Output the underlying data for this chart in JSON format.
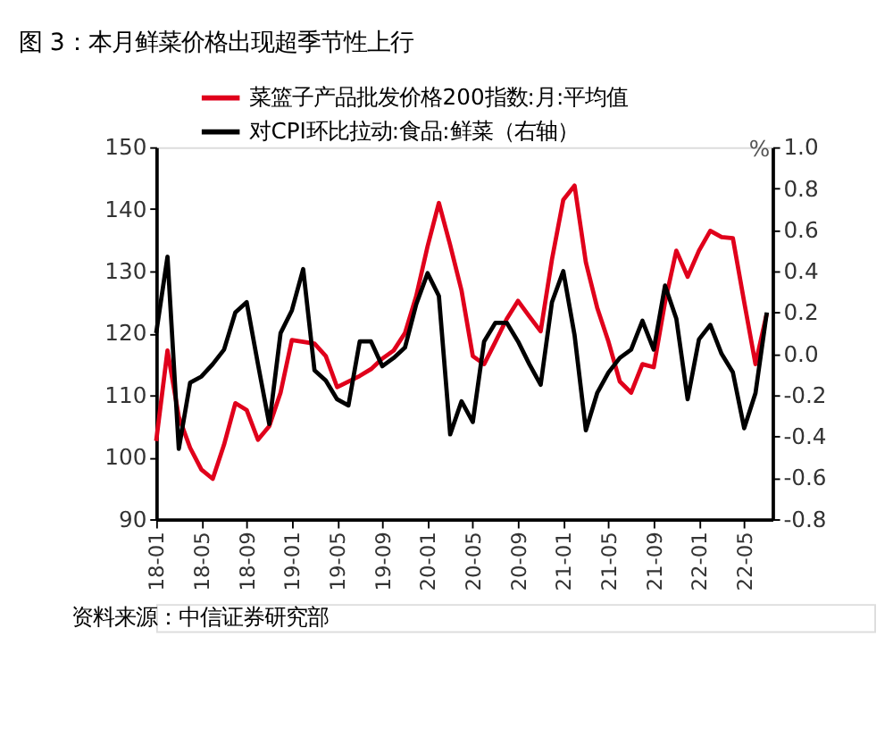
{
  "chart_data": {
    "type": "line",
    "title": "图 3：本月鲜菜价格出现超季节性上行",
    "categories": [
      "18-01",
      null,
      null,
      null,
      "18-05",
      null,
      null,
      null,
      "18-09",
      null,
      null,
      null,
      "19-01",
      null,
      null,
      null,
      "19-05",
      null,
      null,
      null,
      "19-09",
      null,
      null,
      null,
      "20-01",
      null,
      null,
      null,
      "20-05",
      null,
      null,
      null,
      "20-09",
      null,
      null,
      null,
      "21-01",
      null,
      null,
      null,
      "21-05",
      null,
      null,
      null,
      "21-09",
      null,
      null,
      null,
      "22-01",
      null,
      null,
      null,
      "22-05",
      null,
      null
    ],
    "series": [
      {
        "name": "菜篮子产品批发价格200指数:月:平均值",
        "color": "#e0001b",
        "values": [
          102.6,
          117.2,
          106.5,
          101.5,
          98,
          96.5,
          102,
          108.7,
          107.6,
          102.8,
          105,
          110.4,
          118.9,
          118.6,
          118.3,
          116.3,
          111.3,
          112.2,
          113.1,
          114.2,
          115.9,
          117.2,
          120,
          126,
          134,
          141,
          134.2,
          126.9,
          116.3,
          115,
          118.6,
          122.3,
          125.2,
          122.7,
          120.3,
          131.9,
          141.5,
          143.8,
          131.4,
          124.1,
          118.6,
          112.2,
          110.4,
          115,
          114.5,
          125,
          133.3,
          129.1,
          133.3,
          136.5,
          135.5,
          135.3,
          125,
          115,
          123.2
        ]
      },
      {
        "name": "对CPI环比拉动:食品:鲜菜（右轴）",
        "color": "#000000",
        "axis": "y2",
        "values": [
          0.1,
          0.47,
          -0.46,
          -0.14,
          -0.11,
          -0.05,
          0.02,
          0.2,
          0.25,
          -0.05,
          -0.34,
          0.1,
          0.21,
          0.41,
          -0.08,
          -0.13,
          -0.22,
          -0.25,
          0.06,
          0.06,
          -0.06,
          -0.02,
          0.03,
          0.24,
          0.39,
          0.28,
          -0.39,
          -0.23,
          -0.33,
          0.06,
          0.15,
          0.15,
          0.06,
          -0.05,
          -0.15,
          0.25,
          0.4,
          0.09,
          -0.37,
          -0.19,
          -0.09,
          -0.02,
          0.02,
          0.16,
          0.02,
          0.33,
          0.17,
          -0.22,
          0.07,
          0.14,
          0.0,
          -0.09,
          -0.36,
          -0.19,
          0.2
        ]
      }
    ],
    "ylim": [
      90,
      150
    ],
    "yticks": [
      90,
      100,
      110,
      120,
      130,
      140,
      150
    ],
    "y2lim": [
      -0.8,
      1.0
    ],
    "y2ticks": [
      -0.8,
      -0.6,
      -0.4,
      -0.2,
      {
        "value": 0,
        "label": "0.0"
      },
      0.2,
      0.4,
      0.6,
      0.8,
      {
        "value": 1.0,
        "label": "1.0"
      }
    ],
    "y2label": "%",
    "legend": "top",
    "annotations": [
      "资料来源：中信证券研究部"
    ]
  }
}
